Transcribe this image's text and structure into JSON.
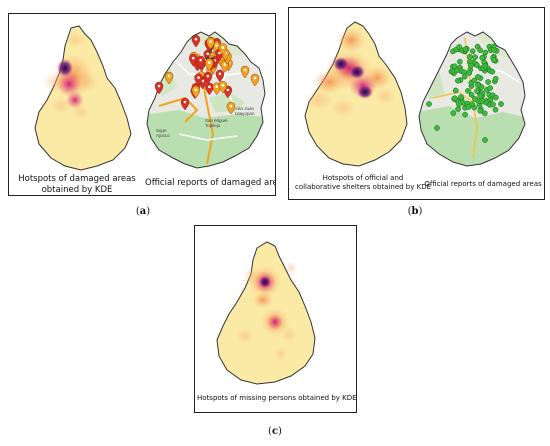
{
  "figure": {
    "panel_a": {
      "label": "a",
      "left_caption": [
        "Hotspots of damaged areas",
        "obtained by KDE"
      ],
      "right_caption": "Official reports of damaged areas"
    },
    "panel_b": {
      "label": "b",
      "left_caption": [
        "Hotspots of official and",
        "collaborative shelters obtained by KDE"
      ],
      "right_caption": "Official reports of damaged areas"
    },
    "panel_c": {
      "label": "c",
      "caption": "Hotspots of missing persons obtained by KDE"
    }
  },
  "map_labels": {
    "a_city_fragment": [
      "d",
      "oco"
    ],
    "a_san_miguel": [
      "San Miguel",
      "Topilejo"
    ],
    "a_san_juan": [
      "San Juan",
      "Ixtayopan"
    ],
    "a_left_town": [
      "Sque",
      "Ajusco"
    ]
  },
  "colors": {
    "city_fill": "#fbe9a6",
    "heat_light": "#f5a55a",
    "heat_mid": "#e0307a",
    "heat_core": "#1a0a5c",
    "map_green": "#b9dfb0",
    "map_gray": "#e9e9e4",
    "red_marker": "#d93025",
    "orange_marker": "#f2a41c",
    "green_marker": "#2fa52f"
  }
}
